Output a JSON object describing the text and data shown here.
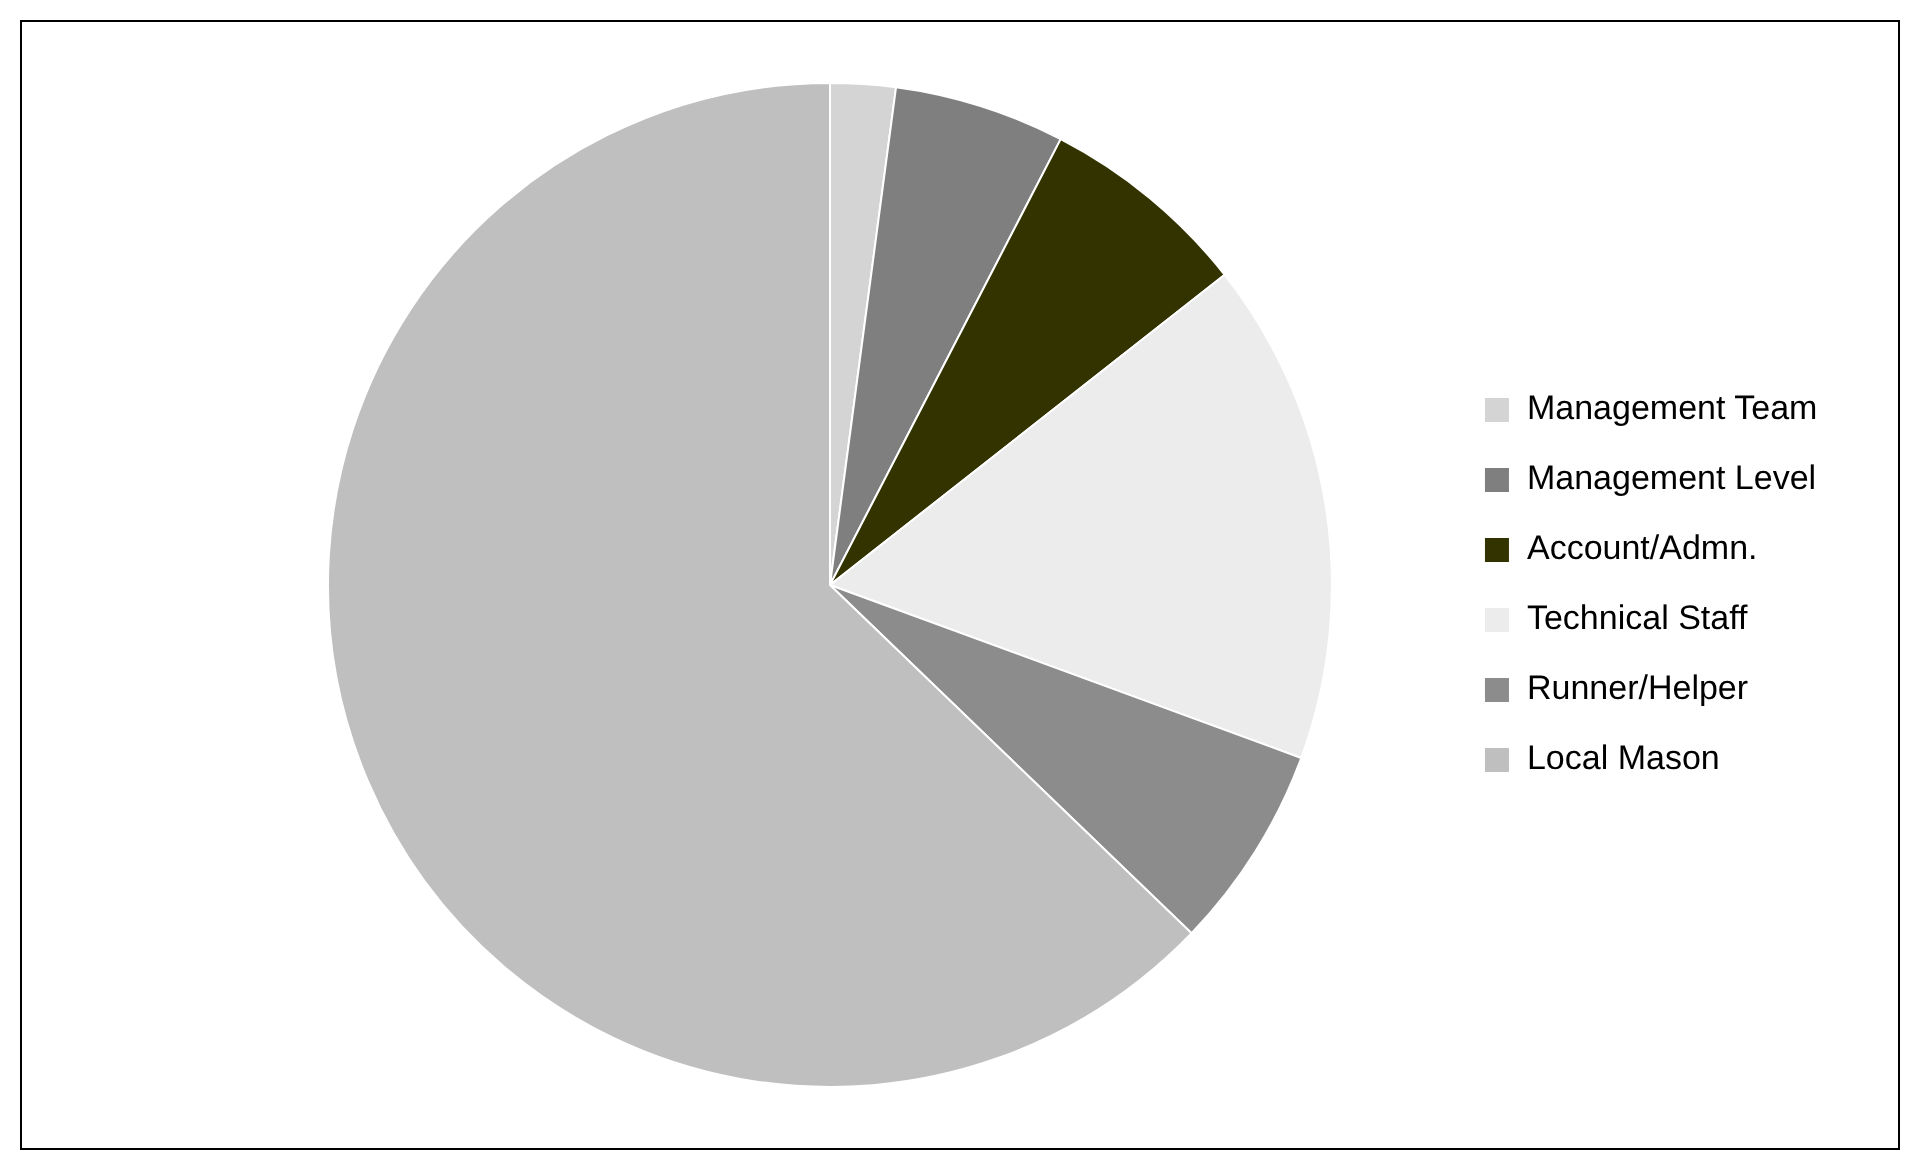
{
  "chart_data": {
    "type": "pie",
    "categories": [
      "Management Team",
      "Management Level",
      "Account/Admn.",
      "Technical Staff",
      "Runner/Helper",
      "Local Mason"
    ],
    "values": [
      2.1,
      5.5,
      6.8,
      16.2,
      6.6,
      62.8
    ],
    "colors": [
      "#d4d4d4",
      "#7f7f7f",
      "#333300",
      "#ececec",
      "#8c8c8c",
      "#bfbfbf"
    ],
    "legend": "right"
  }
}
